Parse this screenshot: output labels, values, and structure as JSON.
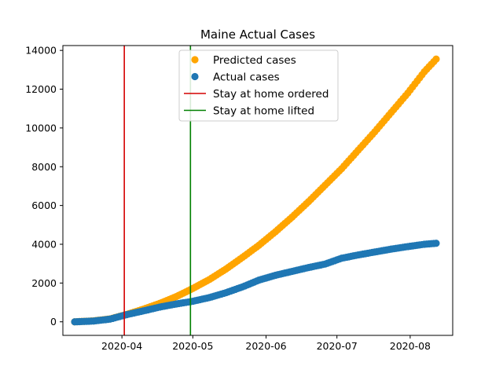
{
  "chart_data": {
    "type": "scatter",
    "title": "Maine Actual Cases",
    "xlabel": "",
    "ylabel": "",
    "x_type": "date",
    "xlim": [
      "2020-03-07",
      "2020-08-19"
    ],
    "ylim": [
      -700,
      14250
    ],
    "x_ticks": [
      "2020-04-01",
      "2020-05-01",
      "2020-06-01",
      "2020-07-01",
      "2020-08-01"
    ],
    "x_tick_labels": [
      "2020-04",
      "2020-05",
      "2020-06",
      "2020-07",
      "2020-08"
    ],
    "y_ticks": [
      0,
      2000,
      4000,
      6000,
      8000,
      10000,
      12000,
      14000
    ],
    "y_tick_labels": [
      "0",
      "2000",
      "4000",
      "6000",
      "8000",
      "10000",
      "12000",
      "14000"
    ],
    "grid": false,
    "legend_position": "top-center",
    "series": [
      {
        "name": "Predicted cases",
        "color": "#ffa500",
        "x": [
          "2020-03-12",
          "2020-03-20",
          "2020-03-27",
          "2020-04-03",
          "2020-04-10",
          "2020-04-17",
          "2020-04-24",
          "2020-05-01",
          "2020-05-08",
          "2020-05-15",
          "2020-05-22",
          "2020-05-29",
          "2020-06-05",
          "2020-06-12",
          "2020-06-19",
          "2020-06-26",
          "2020-07-03",
          "2020-07-10",
          "2020-07-17",
          "2020-07-24",
          "2020-07-31",
          "2020-08-07",
          "2020-08-12"
        ],
        "y": [
          0,
          50,
          150,
          380,
          650,
          950,
          1300,
          1720,
          2180,
          2720,
          3320,
          3950,
          4650,
          5400,
          6200,
          7050,
          7900,
          8850,
          9800,
          10800,
          11800,
          12900,
          13550
        ]
      },
      {
        "name": "Actual cases",
        "color": "#1f77b4",
        "x": [
          "2020-03-12",
          "2020-03-20",
          "2020-03-27",
          "2020-04-03",
          "2020-04-10",
          "2020-04-17",
          "2020-04-24",
          "2020-05-01",
          "2020-05-08",
          "2020-05-15",
          "2020-05-22",
          "2020-05-29",
          "2020-06-05",
          "2020-06-12",
          "2020-06-19",
          "2020-06-26",
          "2020-07-03",
          "2020-07-10",
          "2020-07-17",
          "2020-07-24",
          "2020-07-31",
          "2020-08-07",
          "2020-08-12"
        ],
        "y": [
          0,
          40,
          140,
          370,
          560,
          760,
          920,
          1060,
          1250,
          1500,
          1800,
          2150,
          2400,
          2600,
          2800,
          2980,
          3280,
          3450,
          3600,
          3750,
          3880,
          4000,
          4050
        ]
      }
    ],
    "vlines": [
      {
        "name": "Stay at home ordered",
        "x": "2020-04-02",
        "color": "#d40000"
      },
      {
        "name": "Stay at home lifted",
        "x": "2020-04-30",
        "color": "#008000"
      }
    ]
  }
}
